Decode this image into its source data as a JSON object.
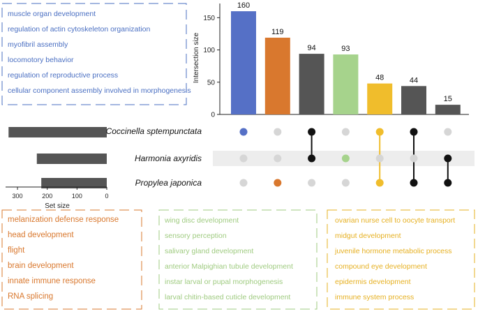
{
  "chart_data": {
    "type": "bar",
    "intersection_axis_label": "Intersection size",
    "intersection_ticks": [
      0,
      50,
      100,
      150
    ],
    "intersection_ylim": [
      0,
      172
    ],
    "sets": [
      {
        "name": "Coccinella sptempunctata",
        "size": 330
      },
      {
        "name": "Harmonia axyridis",
        "size": 235
      },
      {
        "name": "Propylea japonica",
        "size": 220
      }
    ],
    "set_size_label": "Set size",
    "set_size_ticks": [
      300,
      200,
      100,
      0
    ],
    "set_size_xlim": [
      0,
      340
    ],
    "intersections": [
      {
        "value": 160,
        "color": "#5570c6",
        "sets": [
          0
        ]
      },
      {
        "value": 119,
        "color": "#d9782e",
        "sets": [
          2
        ]
      },
      {
        "value": 94,
        "color": "#555555",
        "sets": [
          0,
          1
        ]
      },
      {
        "value": 93,
        "color": "#a6d38c",
        "sets": [
          1
        ]
      },
      {
        "value": 48,
        "color": "#f0bd2c",
        "sets": [
          0,
          2
        ]
      },
      {
        "value": 44,
        "color": "#555555",
        "sets": [
          0,
          2
        ]
      },
      {
        "value": 15,
        "color": "#555555",
        "sets": [
          1,
          2
        ]
      }
    ],
    "dot_colors": {
      "inactive": "#d6d6d6",
      "faded": "#a8a8a8",
      "highlight_row": "#ededed"
    },
    "faded_dots": [
      [
        5,
        1
      ],
      [
        6,
        0
      ]
    ]
  },
  "term_boxes": {
    "blue": [
      "muscle organ development",
      "regulation of actin cytoskeleton organization",
      "myofibril assembly",
      "locomotory behavior",
      "regulation of reproductive process",
      "cellular component assembly involved in morphogenesis"
    ],
    "orange": [
      "melanization defense response",
      "head development",
      "flight",
      "brain development",
      "innate immune response",
      "RNA splicing"
    ],
    "green": [
      "wing disc development",
      "sensory perception",
      "salivary gland development",
      "anterior Malpighian tubule development",
      "instar larval or pupal morphogenesis",
      "larval chitin-based cuticle development"
    ],
    "yellow": [
      "ovarian nurse cell to oocyte transport",
      "midgut development",
      "juvenile hormone metabolic process",
      "compound eye development",
      "epidermis development",
      "immune system process"
    ]
  },
  "colors": {
    "blue_box": "#4a6fc2",
    "orange_box": "#d9782e",
    "green_box": "#9fcb80",
    "yellow_box": "#e6b022",
    "dark": "#555555"
  }
}
